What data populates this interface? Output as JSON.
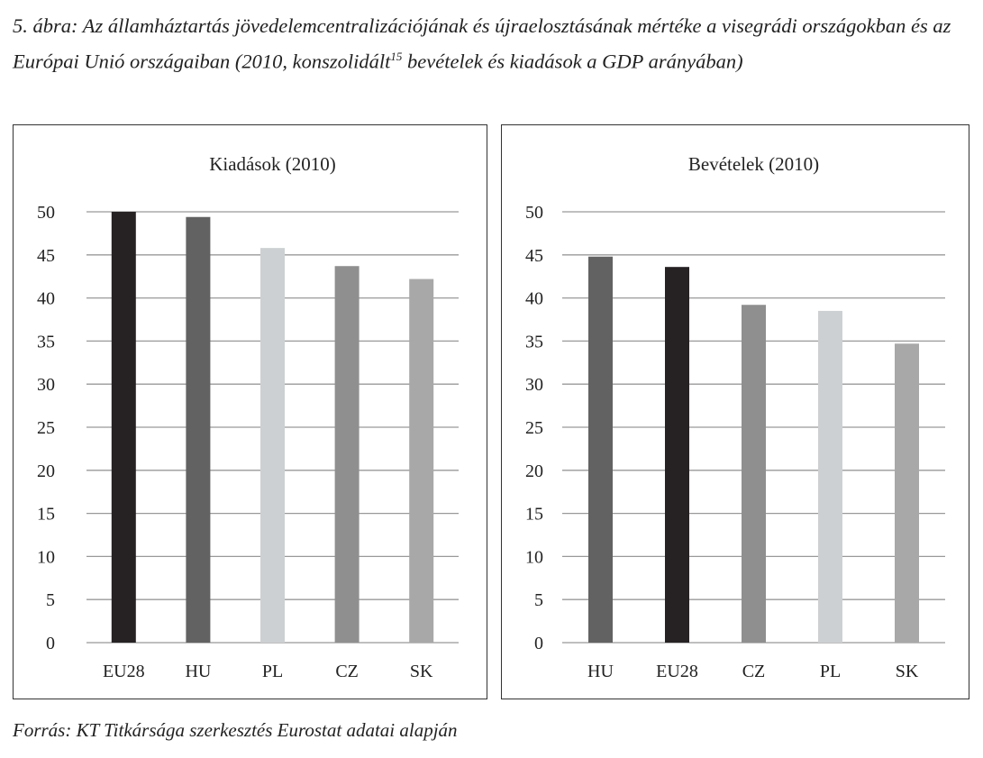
{
  "caption": {
    "text": "5. ábra: Az államháztartás jövedelemcentralizációjának és újraelosztásának mértéke a visegrádi országokban és az Európai Unió országaiban (2010, konszolidált",
    "footnote": "15",
    "text_after": " bevételek és kiadások a GDP arányában)"
  },
  "source": "Forrás: KT Titkársága szerkesztés Eurostat adatai alapján",
  "colors": {
    "EU28": "#262224",
    "HU": "#626262",
    "PL": "#cdd0d2",
    "CZ": "#8f8f8f",
    "SK": "#a8a8a8",
    "grid": "#999999"
  },
  "chart_data": [
    {
      "type": "bar",
      "title": "Kiadások (2010)",
      "categories": [
        "EU28",
        "HU",
        "PL",
        "CZ",
        "SK"
      ],
      "values": [
        50.0,
        49.4,
        45.8,
        43.7,
        42.2
      ],
      "ylim": [
        0,
        50
      ],
      "yticks": [
        0,
        5,
        10,
        15,
        20,
        25,
        30,
        35,
        40,
        45,
        50
      ],
      "grid": true,
      "xlabel": "",
      "ylabel": ""
    },
    {
      "type": "bar",
      "title": "Bevételek (2010)",
      "categories": [
        "HU",
        "EU28",
        "CZ",
        "PL",
        "SK"
      ],
      "values": [
        44.8,
        43.6,
        39.2,
        38.5,
        34.7
      ],
      "ylim": [
        0,
        50
      ],
      "yticks": [
        0,
        5,
        10,
        15,
        20,
        25,
        30,
        35,
        40,
        45,
        50
      ],
      "grid": true,
      "xlabel": "",
      "ylabel": ""
    }
  ]
}
